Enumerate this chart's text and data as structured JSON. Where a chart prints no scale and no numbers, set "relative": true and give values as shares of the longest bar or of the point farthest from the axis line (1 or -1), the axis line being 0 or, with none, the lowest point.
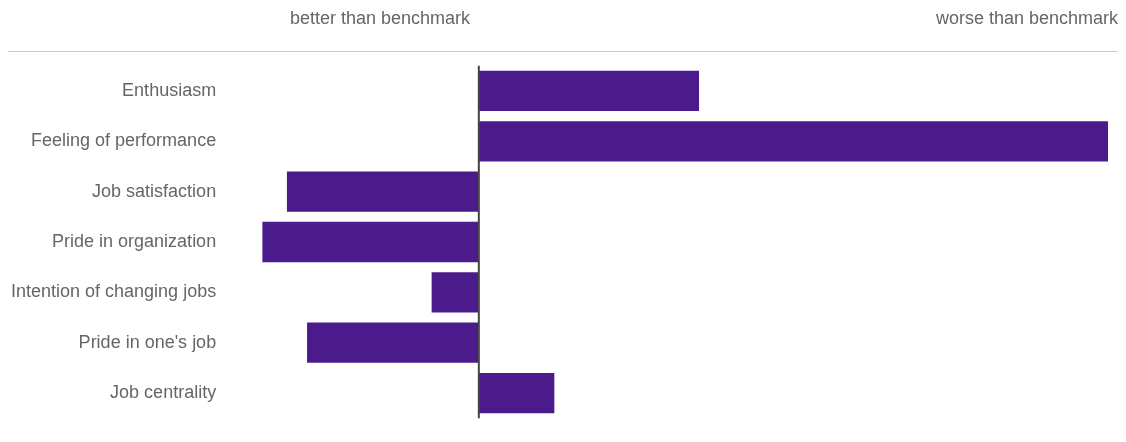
{
  "chart_data": {
    "type": "bar",
    "orientation": "horizontal",
    "relative": true,
    "annotations": [
      "better than benchmark",
      "worse than benchmark"
    ],
    "categories": [
      "Enthusiasm",
      "Feeling of performance",
      "Job satisfaction",
      "Pride in organization",
      "Intention of changing jobs",
      "Pride in one's job",
      "Job centrality"
    ],
    "values": [
      0.35,
      1,
      -0.305,
      -0.344,
      -0.075,
      -0.273,
      0.12
    ],
    "color": "#4b1a8b"
  }
}
